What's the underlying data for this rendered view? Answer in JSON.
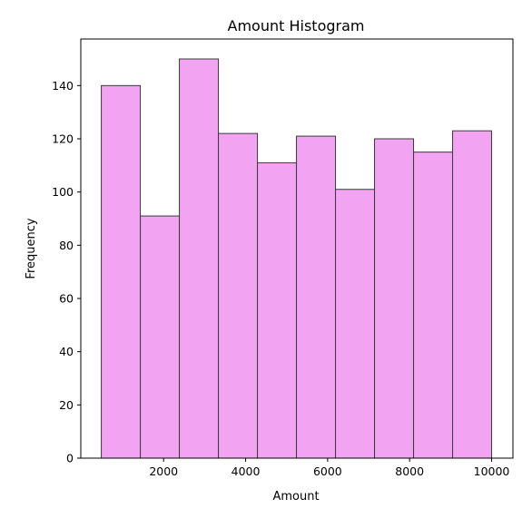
{
  "chart_data": {
    "type": "bar",
    "title": "Amount Histogram",
    "xlabel": "Amount",
    "ylabel": "Frequency",
    "xlim": [
      -20,
      10520
    ],
    "ylim": [
      0,
      157.5
    ],
    "xticks": [
      2000,
      4000,
      6000,
      8000,
      10000
    ],
    "yticks": [
      0,
      20,
      40,
      60,
      80,
      100,
      120,
      140
    ],
    "grid": false,
    "legend": "none",
    "bar_color": "#f2a3f2",
    "edge_color": "#3a3a3a",
    "bins": [
      {
        "x0": 480,
        "x1": 1432,
        "count": 140
      },
      {
        "x0": 1432,
        "x1": 2384,
        "count": 91
      },
      {
        "x0": 2384,
        "x1": 3336,
        "count": 150
      },
      {
        "x0": 3336,
        "x1": 4288,
        "count": 122
      },
      {
        "x0": 4288,
        "x1": 5240,
        "count": 111
      },
      {
        "x0": 5240,
        "x1": 6192,
        "count": 121
      },
      {
        "x0": 6192,
        "x1": 7144,
        "count": 101
      },
      {
        "x0": 7144,
        "x1": 8096,
        "count": 120
      },
      {
        "x0": 8096,
        "x1": 9048,
        "count": 115
      },
      {
        "x0": 9048,
        "x1": 10000,
        "count": 123
      }
    ]
  }
}
